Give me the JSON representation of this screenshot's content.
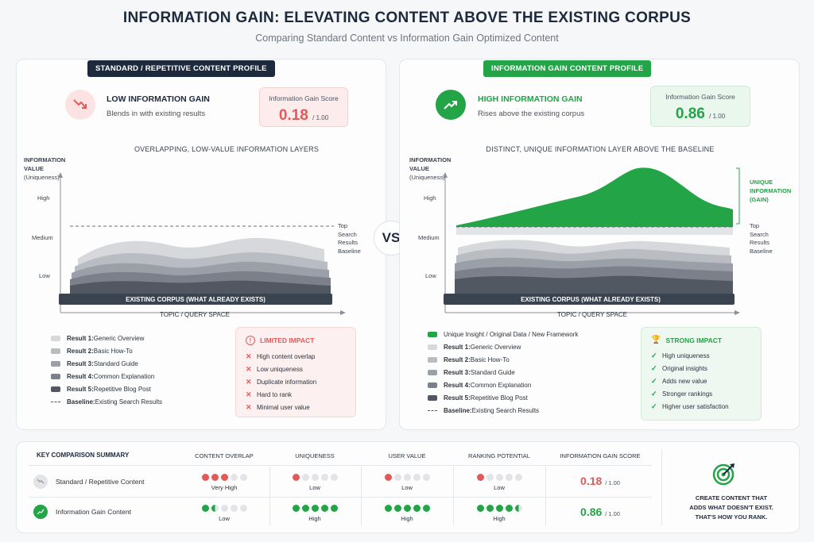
{
  "header": {
    "title": "INFORMATION GAIN: ELEVATING CONTENT ABOVE THE EXISTING CORPUS",
    "subtitle": "Comparing Standard Content vs Information Gain Optimized Content"
  },
  "vs_label": "VS",
  "colors": {
    "red": "#e05a5a",
    "green": "#22a447",
    "navy": "#1d2a3d"
  },
  "left": {
    "pill": "STANDARD / REPETITIVE CONTENT PROFILE",
    "status_title": "LOW INFORMATION GAIN",
    "status_sub": "Blends in with existing results",
    "status_icon": "trend-down-icon",
    "score_label": "Information Gain Score",
    "score_value": "0.18",
    "score_max": "/ 1.00",
    "chart_heading": "OVERLAPPING, LOW-VALUE INFORMATION LAYERS",
    "axis_title": "INFORMATION",
    "axis_title2": "VALUE",
    "axis_sub": "(Uniqueness)",
    "ticks": {
      "high": "High",
      "medium": "Medium",
      "low": "Low"
    },
    "baseline_note": [
      "Top",
      "Search",
      "Results",
      "Baseline"
    ],
    "corpus_label": "EXISTING CORPUS (WHAT ALREADY EXISTS)",
    "x_axis_label": "TOPIC / QUERY SPACE",
    "legend": [
      {
        "bold": "Result 1:",
        "text": " Generic Overview",
        "color": "#d6d8dc"
      },
      {
        "bold": "Result 2:",
        "text": " Basic How-To",
        "color": "#b9bcc2"
      },
      {
        "bold": "Result 3:",
        "text": " Standard Guide",
        "color": "#9b9fa7"
      },
      {
        "bold": "Result 4:",
        "text": " Common Explanation",
        "color": "#7b808a"
      },
      {
        "bold": "Result 5:",
        "text": " Repetitive Blog Post",
        "color": "#525862"
      },
      {
        "bold": "Baseline:",
        "text": " Existing Search Results",
        "color": "dash"
      }
    ],
    "impact_title": "LIMITED IMPACT",
    "impact_items": [
      "High content overlap",
      "Low uniqueness",
      "Duplicate information",
      "Hard to rank",
      "Minimal user value"
    ]
  },
  "right": {
    "pill": "INFORMATION GAIN CONTENT PROFILE",
    "status_title": "HIGH INFORMATION GAIN",
    "status_sub": "Rises above the existing corpus",
    "status_icon": "trend-up-icon",
    "score_label": "Information Gain Score",
    "score_value": "0.86",
    "score_max": "/ 1.00",
    "chart_heading": "DISTINCT, UNIQUE INFORMATION LAYER ABOVE THE BASELINE",
    "axis_title": "INFORMATION",
    "axis_title2": "VALUE",
    "axis_sub": "(Uniqueness)",
    "ticks": {
      "high": "High",
      "medium": "Medium",
      "low": "Low"
    },
    "unique_note": [
      "UNIQUE",
      "INFORMATION",
      "(GAIN)"
    ],
    "baseline_note": [
      "Top",
      "Search",
      "Results",
      "Baseline"
    ],
    "corpus_label": "EXISTING CORPUS (WHAT ALREADY EXISTS)",
    "x_axis_label": "TOPIC / QUERY SPACE",
    "legend": [
      {
        "bold": "",
        "text": "Unique Insight / Original Data / New Framework",
        "color": "#22a447"
      },
      {
        "bold": "Result 1:",
        "text": " Generic Overview",
        "color": "#d6d8dc"
      },
      {
        "bold": "Result 2:",
        "text": " Basic How-To",
        "color": "#b9bcc2"
      },
      {
        "bold": "Result 3:",
        "text": " Standard Guide",
        "color": "#9b9fa7"
      },
      {
        "bold": "Result 4:",
        "text": " Common Explanation",
        "color": "#7b808a"
      },
      {
        "bold": "Result 5:",
        "text": " Repetitive Blog Post",
        "color": "#525862"
      },
      {
        "bold": "Baseline:",
        "text": " Existing Search Results",
        "color": "dash"
      }
    ],
    "impact_title": "STRONG IMPACT",
    "impact_items": [
      "High uniqueness",
      "Original insights",
      "Adds new value",
      "Stronger rankings",
      "Higher user satisfaction"
    ]
  },
  "summary": {
    "title": "KEY COMPARISON SUMMARY",
    "columns": [
      "CONTENT OVERLAP",
      "UNIQUENESS",
      "USER VALUE",
      "RANKING POTENTIAL",
      "INFORMATION GAIN SCORE"
    ],
    "rows": [
      {
        "label": "Standard / Repetitive Content",
        "metrics": [
          {
            "filled": 3,
            "half": false,
            "label": "Very High"
          },
          {
            "filled": 1,
            "half": false,
            "label": "Low"
          },
          {
            "filled": 1,
            "half": false,
            "label": "Low"
          },
          {
            "filled": 1,
            "half": false,
            "label": "Low"
          }
        ],
        "score": "0.18",
        "score_max": "/ 1.00"
      },
      {
        "label": "Information Gain Content",
        "metrics": [
          {
            "filled": 1,
            "half": true,
            "label": "Low"
          },
          {
            "filled": 5,
            "half": false,
            "label": "High"
          },
          {
            "filled": 5,
            "half": false,
            "label": "High"
          },
          {
            "filled": 4,
            "half": true,
            "label": "High"
          }
        ],
        "score": "0.86",
        "score_max": "/ 1.00"
      }
    ],
    "cta": [
      "CREATE CONTENT THAT",
      "ADDS WHAT DOESN'T EXIST.",
      "THAT'S HOW YOU RANK."
    ]
  }
}
